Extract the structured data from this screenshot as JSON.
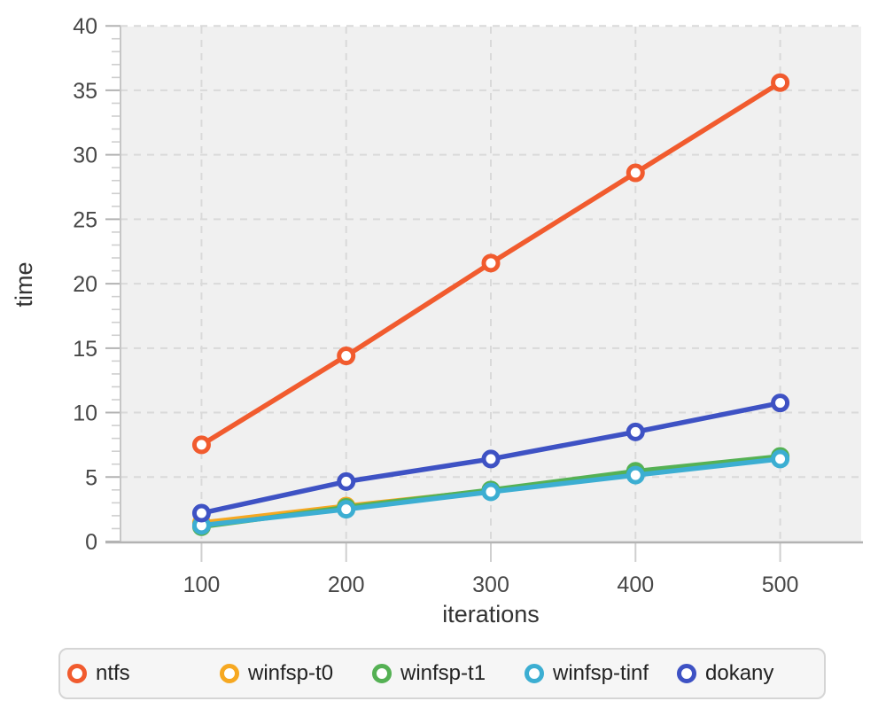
{
  "chart_data": {
    "type": "line",
    "title": "",
    "xlabel": "iterations",
    "ylabel": "time",
    "x": [
      100,
      200,
      300,
      400,
      500
    ],
    "x_ticks": [
      100,
      200,
      300,
      400,
      500
    ],
    "y_ticks": [
      0,
      5,
      10,
      15,
      20,
      25,
      30,
      35,
      40
    ],
    "xlim": [
      44,
      556
    ],
    "ylim": [
      0,
      40
    ],
    "grid": "dashed",
    "legend_position": "bottom",
    "series": [
      {
        "name": "ntfs",
        "color": "#f15b2e",
        "values": [
          7.5,
          14.4,
          21.6,
          28.6,
          35.6
        ]
      },
      {
        "name": "winfsp-t0",
        "color": "#f6a821",
        "values": [
          1.45,
          2.75,
          3.95,
          5.3,
          6.5
        ]
      },
      {
        "name": "winfsp-t1",
        "color": "#55b154",
        "values": [
          1.15,
          2.65,
          4.0,
          5.45,
          6.6
        ]
      },
      {
        "name": "winfsp-tinf",
        "color": "#3caed2",
        "values": [
          1.25,
          2.5,
          3.85,
          5.15,
          6.4
        ]
      },
      {
        "name": "dokany",
        "color": "#3e52c4",
        "values": [
          2.2,
          4.65,
          6.4,
          8.5,
          10.75
        ]
      }
    ],
    "style": {
      "plot_bg": "#f0f0f0",
      "grid_color": "#d9d9d9",
      "axis_color": "#b3b3b3",
      "minor_tick_color": "#cfcfcf",
      "tick_text_color": "#474747",
      "label_text_color": "#333333",
      "marker_fill": "#ffffff"
    }
  }
}
